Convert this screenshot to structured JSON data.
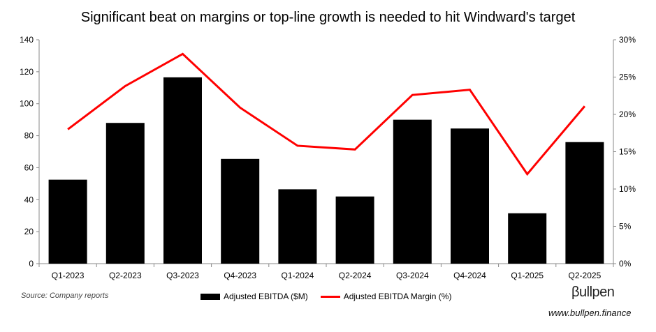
{
  "chart_data": {
    "type": "bar",
    "title": "Significant beat on margins or top-line growth is needed to hit Windward's target",
    "categories": [
      "Q1-2023",
      "Q2-2023",
      "Q3-2023",
      "Q4-2023",
      "Q1-2024",
      "Q2-2024",
      "Q3-2024",
      "Q4-2024",
      "Q1-2025",
      "Q2-2025"
    ],
    "series": [
      {
        "name": "Adjusted EBITDA ($M)",
        "type": "bar",
        "axis": "left",
        "color": "#000000",
        "values": [
          52.5,
          88,
          116.5,
          65.5,
          46.5,
          42,
          90,
          84.5,
          31.5,
          76
        ]
      },
      {
        "name": "Adjusted EBITDA Margin (%)",
        "type": "line",
        "axis": "right",
        "color": "#ff0000",
        "values": [
          18.0,
          23.8,
          28.1,
          20.9,
          15.8,
          15.3,
          22.6,
          23.3,
          12.0,
          21.1
        ]
      }
    ],
    "y_left": {
      "min": 0,
      "max": 140,
      "ticks": [
        "0",
        "20",
        "40",
        "60",
        "80",
        "100",
        "120",
        "140"
      ]
    },
    "y_right": {
      "min": 0,
      "max": 30,
      "ticks": [
        "0%",
        "5%",
        "10%",
        "15%",
        "20%",
        "25%",
        "30%"
      ]
    },
    "grid": false,
    "legend_position": "bottom"
  },
  "footer": {
    "source": "Source: Company reports",
    "brand": "βullpen",
    "url": "www.bullpen.finance"
  }
}
